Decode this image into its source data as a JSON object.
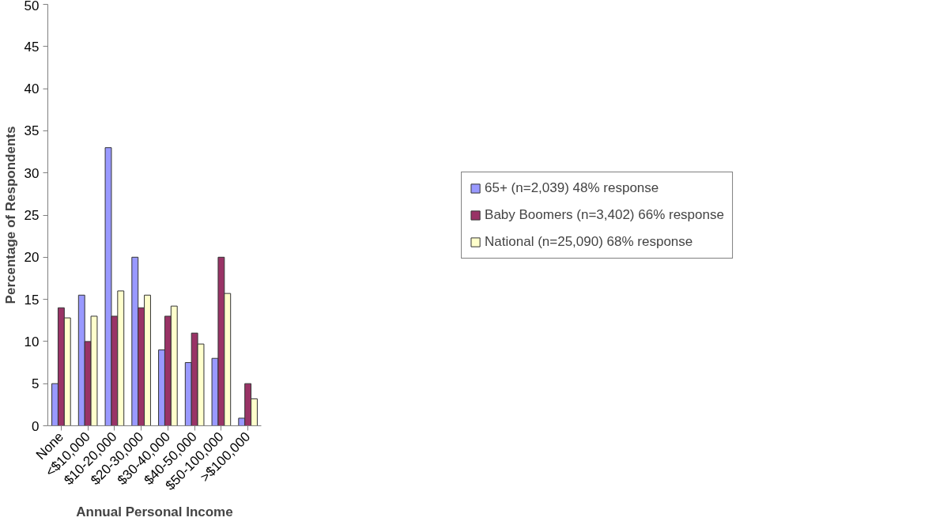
{
  "chart_data": {
    "type": "bar",
    "xlabel": "Annual Personal Income",
    "ylabel": "Percentage of Respondents",
    "categories": [
      "None",
      "<$10,000",
      "$10-20,000",
      "$20-30,000",
      "$30-40,000",
      "$40-50,000",
      "$50-100,000",
      ">$100,000"
    ],
    "series": [
      {
        "name": "65+ (n=2,039) 48% response",
        "color": "#9999ff",
        "values": [
          5,
          15.5,
          33,
          20,
          9,
          7.5,
          8,
          0.9
        ]
      },
      {
        "name": "Baby Boomers (n=3,402) 66% response",
        "color": "#993366",
        "values": [
          14,
          10,
          13,
          14,
          13,
          11,
          20,
          5
        ]
      },
      {
        "name": "National (n=25,090) 68% response",
        "color": "#ffffcc",
        "values": [
          12.8,
          13,
          16,
          15.5,
          14.2,
          9.7,
          15.7,
          3.2
        ]
      }
    ],
    "ylim": [
      0,
      50
    ],
    "yticks": [
      0,
      5,
      10,
      15,
      20,
      25,
      30,
      35,
      40,
      45,
      50
    ],
    "grid": false,
    "legend": "right"
  }
}
